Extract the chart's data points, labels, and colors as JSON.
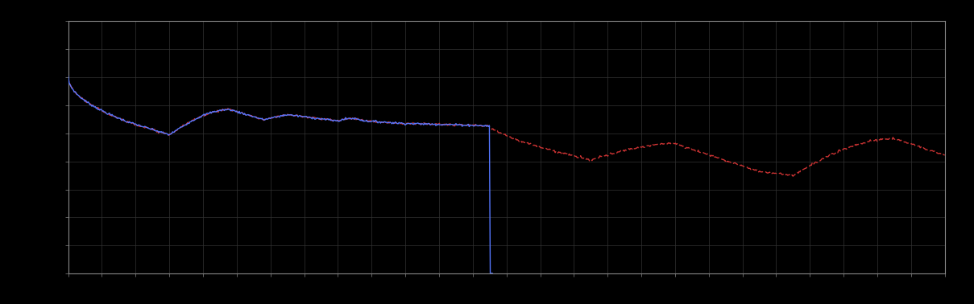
{
  "background_color": "#000000",
  "plot_bg_color": "#000000",
  "grid_color": "#333333",
  "line1_color": "#5577ff",
  "line2_color": "#cc3333",
  "line_width": 1.0,
  "figsize": [
    12.09,
    3.78
  ],
  "dpi": 100,
  "xlim": [
    0,
    260
  ],
  "ylim": [
    0,
    10
  ],
  "n_xgrid": 26,
  "n_ygrid": 9,
  "spine_color": "#999999",
  "border_color": "#888888"
}
